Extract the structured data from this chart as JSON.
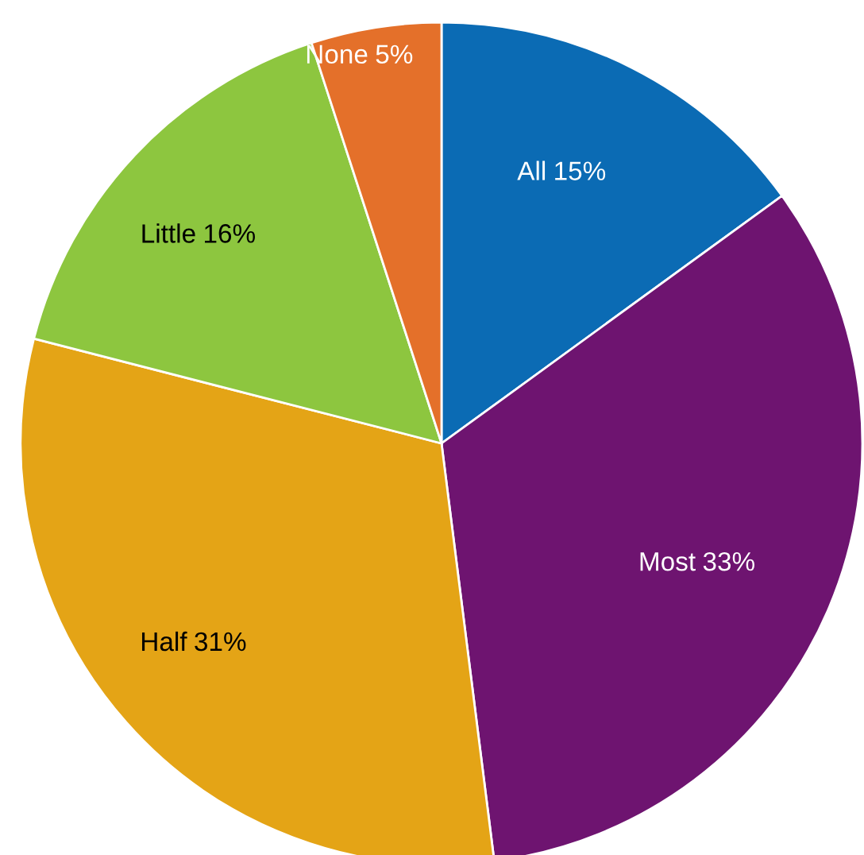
{
  "chart_data": {
    "type": "pie",
    "categories": [
      "All",
      "Most",
      "Half",
      "Little",
      "None"
    ],
    "values": [
      15,
      33,
      31,
      16,
      5
    ],
    "colors": [
      "#0b6bb4",
      "#6e1470",
      "#e4a416",
      "#8dc63f",
      "#e4702a"
    ],
    "value_labels": [
      "15%",
      "33%",
      "31%",
      "16%",
      "5%"
    ],
    "legend": false
  }
}
